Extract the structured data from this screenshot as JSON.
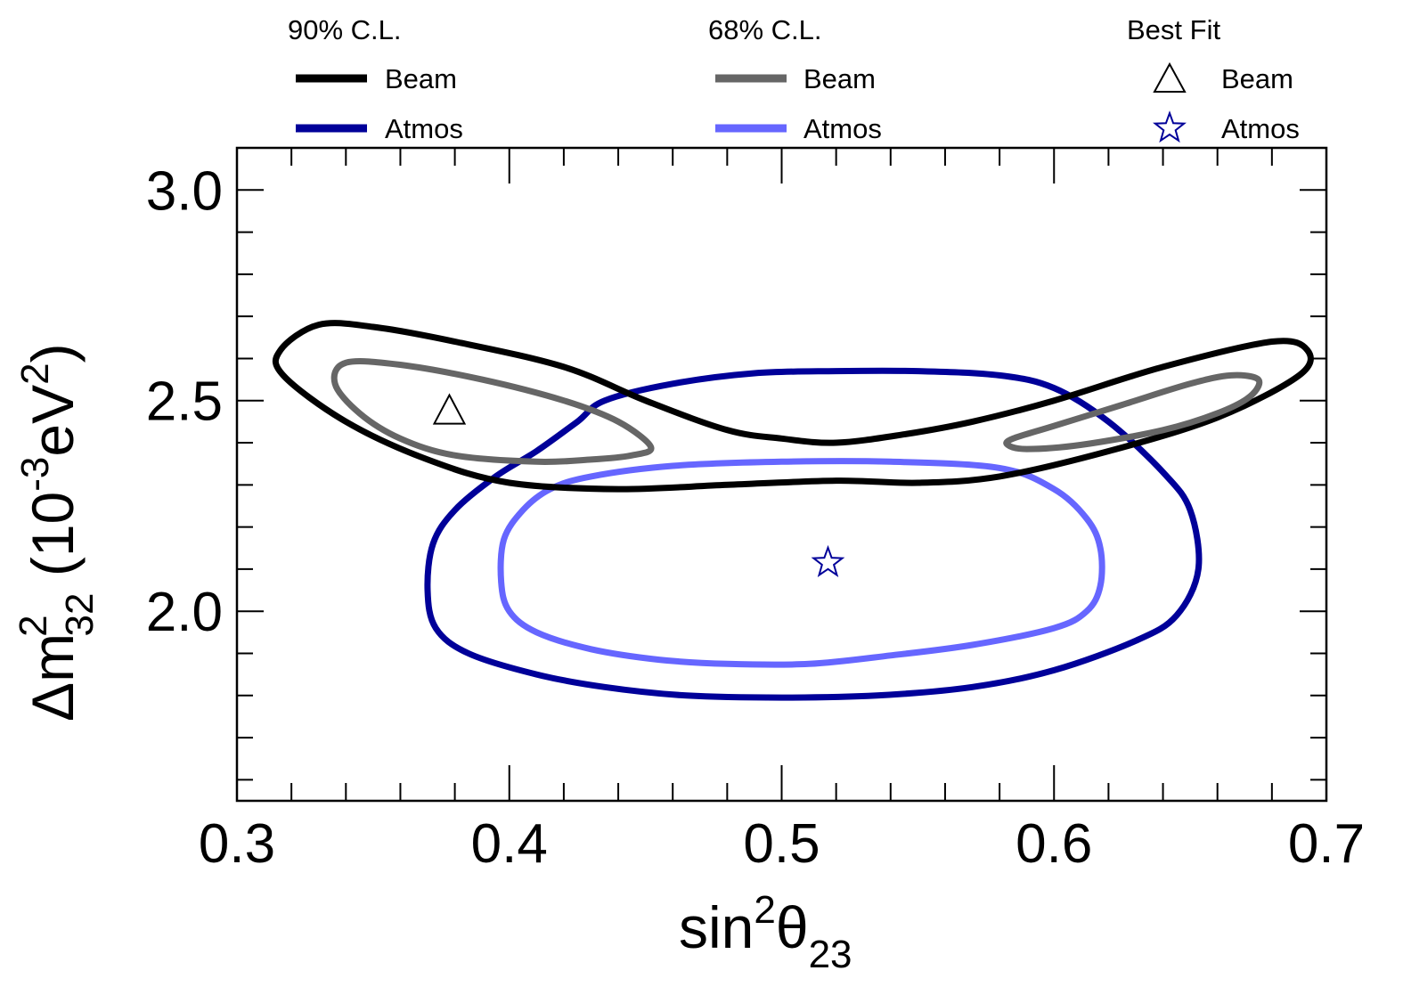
{
  "chart_data": {
    "type": "contour",
    "xlabel_base": "sin",
    "xlabel_sup": "2",
    "xlabel_theta": "θ",
    "xlabel_sub": "23",
    "ylabel_base": "Δm",
    "ylabel_sup": "2",
    "ylabel_sub": "32",
    "ylabel_units_open": " (10",
    "ylabel_units_exp": "-3",
    "ylabel_units_ev": "eV",
    "ylabel_units_ev_exp": "2",
    "ylabel_units_close": ")",
    "xlim": [
      0.3,
      0.7
    ],
    "ylim": [
      1.55,
      3.1
    ],
    "x_ticks": [
      "0.3",
      "0.4",
      "0.5",
      "0.6",
      "0.7"
    ],
    "y_ticks": [
      "2.0",
      "2.5",
      "3.0"
    ],
    "legend": {
      "groups": [
        {
          "title": "90% C.L.",
          "entries": [
            {
              "label": "Beam",
              "color": "#000000"
            },
            {
              "label": "Atmos",
              "color": "#000099"
            }
          ]
        },
        {
          "title": "68% C.L.",
          "entries": [
            {
              "label": "Beam",
              "color": "#666666"
            },
            {
              "label": "Atmos",
              "color": "#6666ff"
            }
          ]
        },
        {
          "title": "Best Fit",
          "entries": [
            {
              "label": "Beam",
              "marker": "triangle",
              "color": "#000000"
            },
            {
              "label": "Atmos",
              "marker": "star",
              "color": "#000099"
            }
          ]
        }
      ]
    },
    "series": [
      {
        "color": "#000099",
        "points": [
          [
            0.435,
            2.5
          ],
          [
            0.46,
            2.54
          ],
          [
            0.49,
            2.565
          ],
          [
            0.52,
            2.57
          ],
          [
            0.55,
            2.57
          ],
          [
            0.58,
            2.56
          ],
          [
            0.6,
            2.53
          ],
          [
            0.62,
            2.45
          ],
          [
            0.64,
            2.33
          ],
          [
            0.65,
            2.24
          ],
          [
            0.653,
            2.1
          ],
          [
            0.645,
            1.99
          ],
          [
            0.63,
            1.93
          ],
          [
            0.6,
            1.86
          ],
          [
            0.57,
            1.82
          ],
          [
            0.535,
            1.8
          ],
          [
            0.5,
            1.795
          ],
          [
            0.465,
            1.8
          ],
          [
            0.435,
            1.82
          ],
          [
            0.41,
            1.85
          ],
          [
            0.385,
            1.9
          ],
          [
            0.373,
            1.96
          ],
          [
            0.37,
            2.05
          ],
          [
            0.372,
            2.16
          ],
          [
            0.38,
            2.24
          ],
          [
            0.395,
            2.32
          ],
          [
            0.41,
            2.38
          ],
          [
            0.425,
            2.45
          ]
        ]
      },
      {
        "color": "#6666ff",
        "points": [
          [
            0.43,
            2.32
          ],
          [
            0.46,
            2.345
          ],
          [
            0.5,
            2.355
          ],
          [
            0.54,
            2.355
          ],
          [
            0.58,
            2.34
          ],
          [
            0.6,
            2.29
          ],
          [
            0.612,
            2.22
          ],
          [
            0.617,
            2.15
          ],
          [
            0.617,
            2.06
          ],
          [
            0.612,
            2.0
          ],
          [
            0.6,
            1.96
          ],
          [
            0.57,
            1.92
          ],
          [
            0.54,
            1.895
          ],
          [
            0.51,
            1.875
          ],
          [
            0.48,
            1.875
          ],
          [
            0.455,
            1.885
          ],
          [
            0.43,
            1.91
          ],
          [
            0.41,
            1.95
          ],
          [
            0.4,
            2.0
          ],
          [
            0.397,
            2.07
          ],
          [
            0.398,
            2.17
          ],
          [
            0.405,
            2.24
          ],
          [
            0.415,
            2.29
          ]
        ]
      },
      {
        "color": "#000000",
        "points": [
          [
            0.33,
            2.68
          ],
          [
            0.35,
            2.675
          ],
          [
            0.38,
            2.64
          ],
          [
            0.42,
            2.58
          ],
          [
            0.45,
            2.5
          ],
          [
            0.48,
            2.43
          ],
          [
            0.5,
            2.41
          ],
          [
            0.52,
            2.4
          ],
          [
            0.545,
            2.42
          ],
          [
            0.57,
            2.45
          ],
          [
            0.6,
            2.5
          ],
          [
            0.64,
            2.58
          ],
          [
            0.68,
            2.64
          ],
          [
            0.693,
            2.62
          ],
          [
            0.69,
            2.56
          ],
          [
            0.66,
            2.46
          ],
          [
            0.62,
            2.38
          ],
          [
            0.58,
            2.32
          ],
          [
            0.55,
            2.305
          ],
          [
            0.52,
            2.31
          ],
          [
            0.48,
            2.3
          ],
          [
            0.44,
            2.29
          ],
          [
            0.4,
            2.305
          ],
          [
            0.37,
            2.36
          ],
          [
            0.34,
            2.45
          ],
          [
            0.317,
            2.56
          ],
          [
            0.316,
            2.62
          ]
        ]
      },
      {
        "color": "#666666",
        "points": [
          [
            0.34,
            2.59
          ],
          [
            0.36,
            2.585
          ],
          [
            0.39,
            2.55
          ],
          [
            0.42,
            2.5
          ],
          [
            0.44,
            2.45
          ],
          [
            0.452,
            2.39
          ],
          [
            0.445,
            2.37
          ],
          [
            0.43,
            2.36
          ],
          [
            0.41,
            2.355
          ],
          [
            0.38,
            2.37
          ],
          [
            0.36,
            2.41
          ],
          [
            0.345,
            2.47
          ],
          [
            0.336,
            2.54
          ]
        ]
      },
      {
        "color": "#666666",
        "points": [
          [
            0.585,
            2.41
          ],
          [
            0.6,
            2.44
          ],
          [
            0.625,
            2.49
          ],
          [
            0.65,
            2.54
          ],
          [
            0.665,
            2.56
          ],
          [
            0.675,
            2.55
          ],
          [
            0.672,
            2.51
          ],
          [
            0.66,
            2.47
          ],
          [
            0.64,
            2.43
          ],
          [
            0.61,
            2.395
          ],
          [
            0.59,
            2.385
          ],
          [
            0.583,
            2.395
          ]
        ]
      }
    ],
    "best_fit": [
      {
        "marker": "triangle",
        "x": 0.378,
        "y": 2.475,
        "color": "#000000"
      },
      {
        "marker": "star",
        "x": 0.517,
        "y": 2.115,
        "color": "#000099"
      }
    ]
  }
}
